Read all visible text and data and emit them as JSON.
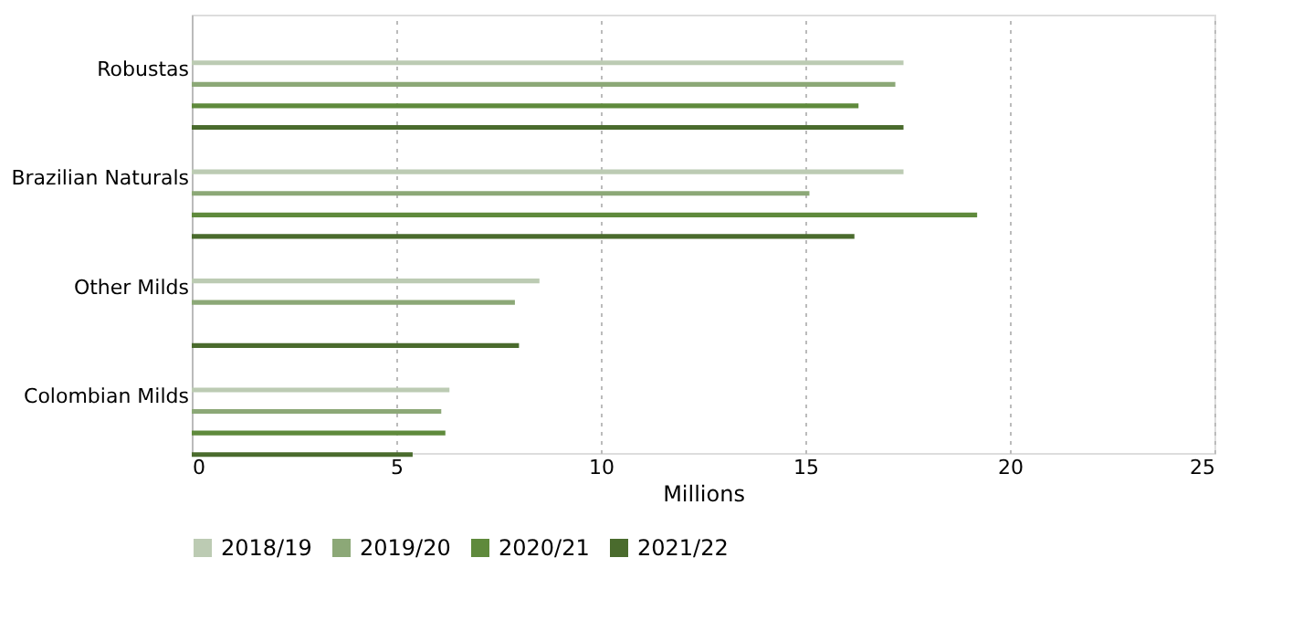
{
  "chart_data": {
    "type": "bar",
    "orientation": "horizontal",
    "xlabel": "Millions",
    "categories": [
      "Robustas",
      "Brazilian Naturals",
      "Other Milds",
      "Colombian Milds"
    ],
    "series": [
      {
        "name": "2018/19",
        "color": "#bccbb3",
        "values": [
          17.4,
          17.4,
          8.5,
          6.3
        ]
      },
      {
        "name": "2019/20",
        "color": "#8ca877",
        "values": [
          17.2,
          15.1,
          7.9,
          6.1
        ]
      },
      {
        "name": "2020/21",
        "color": "#5f8a3c",
        "values": [
          16.3,
          19.2,
          null,
          6.2
        ]
      },
      {
        "name": "2021/22",
        "color": "#4a6b2d",
        "values": [
          17.4,
          16.2,
          8.0,
          5.4
        ]
      }
    ],
    "xlim": [
      0,
      25
    ],
    "xticks": [
      0,
      5,
      10,
      15,
      20,
      25
    ],
    "grid": "x",
    "legend": "bottom"
  }
}
